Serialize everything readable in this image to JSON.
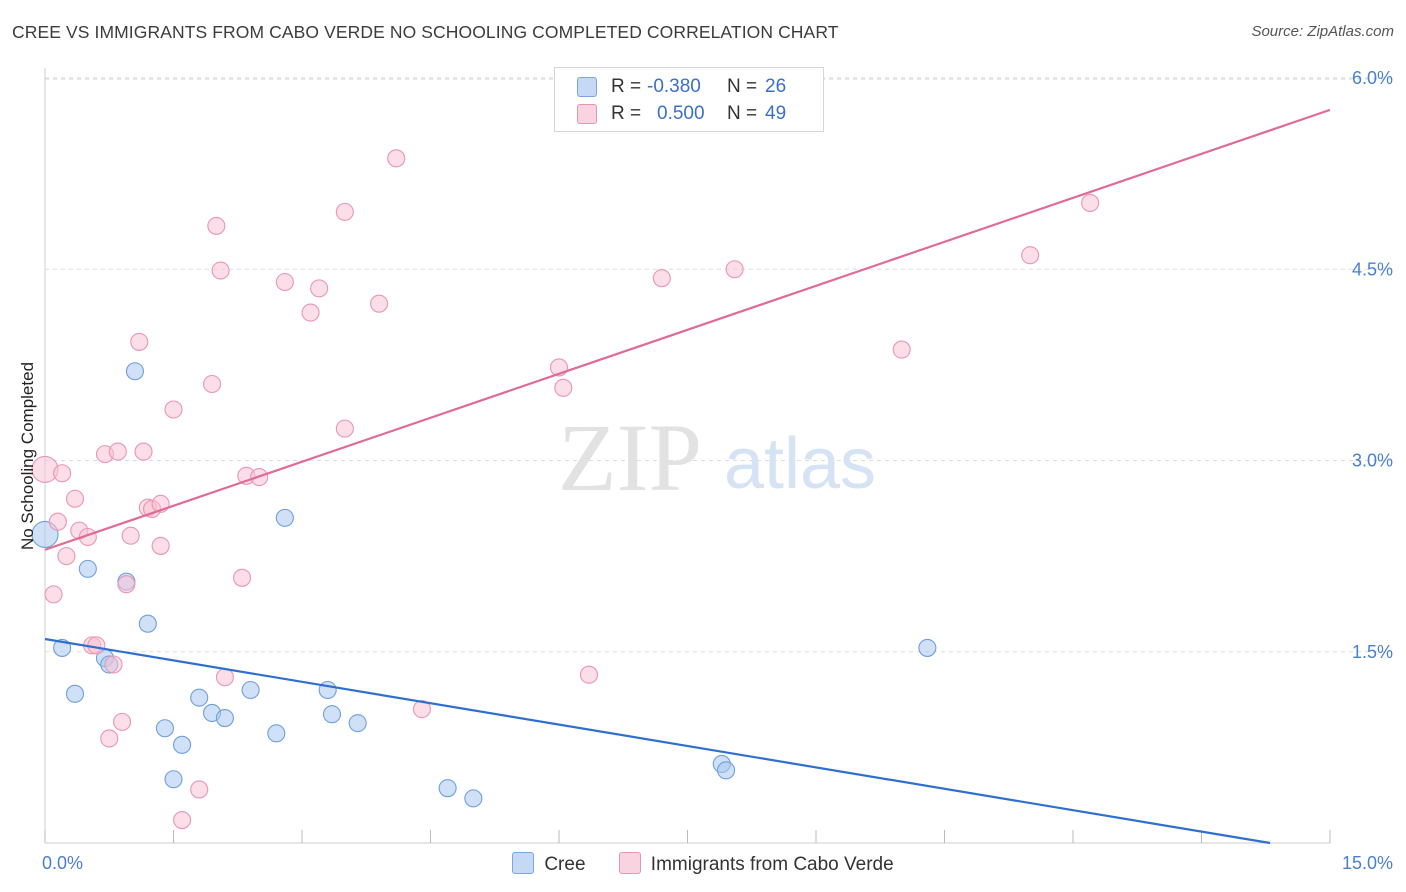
{
  "title": "CREE VS IMMIGRANTS FROM CABO VERDE NO SCHOOLING COMPLETED CORRELATION CHART",
  "source": "Source: ZipAtlas.com",
  "watermark": {
    "zip": "ZIP",
    "atlas": "atlas"
  },
  "legend_stats": [
    {
      "r_label": "R =",
      "r_value": "-0.380",
      "n_label": "N =",
      "n_value": "26",
      "color": "#aac8f0",
      "border": "#7aa6e0"
    },
    {
      "r_label": "R =",
      "r_value": "0.500",
      "n_label": "N =",
      "n_value": "49",
      "color": "#f7c3d3",
      "border": "#ea94b0"
    }
  ],
  "chart_data": {
    "type": "scatter",
    "title": "CREE VS IMMIGRANTS FROM CABO VERDE NO SCHOOLING COMPLETED CORRELATION CHART",
    "xlabel": "",
    "ylabel": "No Schooling Completed",
    "xlim": [
      0,
      15
    ],
    "ylim": [
      0,
      6.2
    ],
    "x_tick_labels": [
      "0.0%",
      "15.0%"
    ],
    "y_ticks": [
      1.5,
      3.0,
      4.5,
      6.0
    ],
    "y_tick_labels": [
      "1.5%",
      "3.0%",
      "4.5%",
      "6.0%"
    ],
    "grid": true,
    "series": [
      {
        "name": "Cree",
        "color": "#aac8f0",
        "stroke": "#6e9fdc",
        "line_color": "#2f6fd0",
        "trend": [
          [
            0,
            1.6
          ],
          [
            14.3,
            0
          ]
        ],
        "points": [
          [
            0.0,
            2.42
          ],
          [
            0.2,
            1.53
          ],
          [
            0.35,
            1.17
          ],
          [
            0.5,
            2.15
          ],
          [
            0.7,
            1.45
          ],
          [
            0.75,
            1.4
          ],
          [
            0.95,
            2.05
          ],
          [
            1.05,
            3.7
          ],
          [
            1.2,
            1.72
          ],
          [
            1.4,
            0.9
          ],
          [
            1.5,
            0.5
          ],
          [
            1.6,
            0.77
          ],
          [
            1.8,
            1.14
          ],
          [
            1.95,
            1.02
          ],
          [
            2.1,
            0.98
          ],
          [
            2.4,
            1.2
          ],
          [
            2.7,
            0.86
          ],
          [
            2.8,
            2.55
          ],
          [
            3.3,
            1.2
          ],
          [
            3.35,
            1.01
          ],
          [
            3.65,
            0.94
          ],
          [
            4.7,
            0.43
          ],
          [
            5.0,
            0.35
          ],
          [
            7.9,
            0.62
          ],
          [
            7.95,
            0.57
          ],
          [
            10.3,
            1.53
          ]
        ]
      },
      {
        "name": "Immigrants from Cabo Verde",
        "color": "#f7c3d3",
        "stroke": "#e996b2",
        "line_color": "#e06b93",
        "trend": [
          [
            0,
            2.3
          ],
          [
            15,
            5.75
          ]
        ],
        "points": [
          [
            0.0,
            2.93
          ],
          [
            0.1,
            1.95
          ],
          [
            0.15,
            2.52
          ],
          [
            0.2,
            2.9
          ],
          [
            0.25,
            2.25
          ],
          [
            0.35,
            2.7
          ],
          [
            0.4,
            2.45
          ],
          [
            0.5,
            2.4
          ],
          [
            0.55,
            1.55
          ],
          [
            0.6,
            1.55
          ],
          [
            0.7,
            3.05
          ],
          [
            0.75,
            0.82
          ],
          [
            0.8,
            1.4
          ],
          [
            0.85,
            3.07
          ],
          [
            0.9,
            0.95
          ],
          [
            0.95,
            2.03
          ],
          [
            1.0,
            2.41
          ],
          [
            1.1,
            3.93
          ],
          [
            1.15,
            3.07
          ],
          [
            1.2,
            2.63
          ],
          [
            1.25,
            2.62
          ],
          [
            1.35,
            2.66
          ],
          [
            1.35,
            2.33
          ],
          [
            1.5,
            3.4
          ],
          [
            1.6,
            0.18
          ],
          [
            1.8,
            0.42
          ],
          [
            1.95,
            3.6
          ],
          [
            2.0,
            4.84
          ],
          [
            2.05,
            4.49
          ],
          [
            2.1,
            1.3
          ],
          [
            2.3,
            2.08
          ],
          [
            2.35,
            2.88
          ],
          [
            2.5,
            2.87
          ],
          [
            2.8,
            4.4
          ],
          [
            3.1,
            4.16
          ],
          [
            3.2,
            4.35
          ],
          [
            3.5,
            4.95
          ],
          [
            3.5,
            3.25
          ],
          [
            3.9,
            4.23
          ],
          [
            4.1,
            5.37
          ],
          [
            4.4,
            1.05
          ],
          [
            6.0,
            3.73
          ],
          [
            6.05,
            3.57
          ],
          [
            6.35,
            1.32
          ],
          [
            7.2,
            4.43
          ],
          [
            8.05,
            4.5
          ],
          [
            10.0,
            3.87
          ],
          [
            11.5,
            4.61
          ],
          [
            12.2,
            5.02
          ]
        ]
      }
    ]
  }
}
